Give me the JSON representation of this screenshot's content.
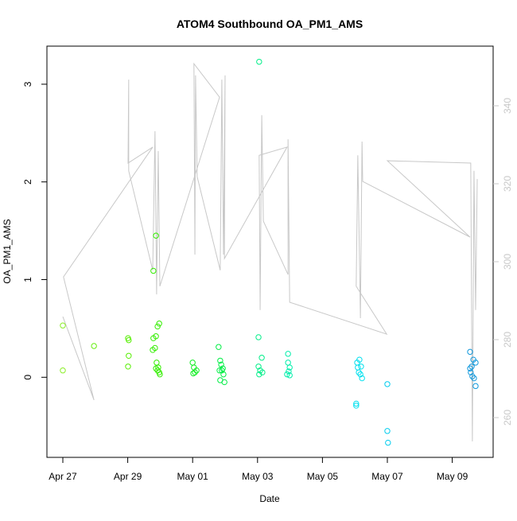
{
  "chart_data": {
    "type": "scatter",
    "title": "ATOM4 Southbound OA_PM1_AMS",
    "x_label": "Date",
    "y_label": "OA_PM1_AMS",
    "xlim": [
      -0.49,
      13.26
    ],
    "ylim": [
      -0.82,
      3.39
    ],
    "y2lim": [
      249.8,
      355.3
    ],
    "xticks": [
      {
        "value": 0,
        "label": "Apr 27"
      },
      {
        "value": 2,
        "label": "Apr 29"
      },
      {
        "value": 4,
        "label": "May 01"
      },
      {
        "value": 6,
        "label": "May 03"
      },
      {
        "value": 8,
        "label": "May 05"
      },
      {
        "value": 10,
        "label": "May 07"
      },
      {
        "value": 12,
        "label": "May 09"
      }
    ],
    "yticks": [
      0,
      1,
      2,
      3
    ],
    "y2ticks": [
      260,
      280,
      300,
      320,
      340
    ],
    "y2_color": "#c8c8c8",
    "groups": [
      {
        "color": "#88ee22",
        "x": [
          0,
          0
        ],
        "values": [
          0.53,
          0.07
        ]
      },
      {
        "color": "#66ee11",
        "x": [
          0.96
        ],
        "values": [
          0.32
        ]
      },
      {
        "color": "#55ee00",
        "x": [
          2.01,
          2.03,
          2.03,
          2.01
        ],
        "values": [
          0.4,
          0.38,
          0.22,
          0.11
        ]
      },
      {
        "color": "#33ee00",
        "x": [
          2.87,
          2.79,
          2.79,
          2.87,
          2.84,
          2.77,
          2.97,
          2.92,
          2.89,
          2.87,
          2.92,
          2.97,
          2.99,
          2.94
        ],
        "values": [
          1.45,
          1.09,
          0.4,
          0.42,
          0.3,
          0.28,
          0.55,
          0.52,
          0.15,
          0.09,
          0.07,
          0.05,
          0.03,
          0.1
        ]
      },
      {
        "color": "#11ee22",
        "x": [
          4.0,
          4.04,
          4.07,
          4.12,
          4.02
        ],
        "values": [
          0.15,
          0.1,
          0.05,
          0.07,
          0.04
        ]
      },
      {
        "color": "#00ee44",
        "x": [
          4.8,
          4.85,
          4.88,
          4.83,
          4.9,
          4.95,
          4.85,
          4.98,
          4.93
        ],
        "values": [
          0.31,
          0.17,
          0.13,
          0.07,
          0.07,
          0.03,
          -0.03,
          -0.05,
          0.09
        ]
      },
      {
        "color": "#00ee88",
        "x": [
          6.05,
          6.03,
          6.13,
          6.03,
          6.08,
          6.15,
          6.05
        ],
        "values": [
          3.23,
          0.41,
          0.2,
          0.11,
          0.07,
          0.05,
          0.03
        ]
      },
      {
        "color": "#00eeaa",
        "x": [
          6.94,
          6.94,
          6.99,
          6.96,
          6.91,
          6.99
        ],
        "values": [
          0.24,
          0.15,
          0.1,
          0.06,
          0.03,
          0.02
        ]
      },
      {
        "color": "#00e0ee",
        "x": [
          9.04,
          9.04,
          9.07,
          9.14,
          9.09,
          9.17,
          9.22,
          9.12,
          9.19
        ],
        "values": [
          -0.27,
          -0.29,
          0.15,
          0.18,
          0.1,
          0.03,
          -0.01,
          0.05,
          0.11
        ]
      },
      {
        "color": "#00ccee",
        "x": [
          10.0,
          10.0,
          10.02
        ],
        "values": [
          -0.07,
          -0.55,
          -0.67
        ]
      },
      {
        "color": "#1199dd",
        "x": [
          12.55,
          12.6,
          12.65,
          12.72,
          12.57,
          12.62,
          12.67,
          12.72,
          12.55
        ],
        "values": [
          0.26,
          0.11,
          0.18,
          0.15,
          0.05,
          0.01,
          -0.01,
          -0.09,
          0.09
        ]
      }
    ],
    "line": {
      "axis": "y2",
      "color": "#c8c8c8",
      "x": [
        0.0,
        0.96,
        0.02,
        2.77,
        2.01,
        2.03,
        2.03,
        2.77,
        2.84,
        2.89,
        2.94,
        2.99,
        4.83,
        4.04,
        4.07,
        4.09,
        4.14,
        4.85,
        4.9,
        4.95,
        5.0,
        4.98,
        6.91,
        6.05,
        6.08,
        6.13,
        6.18,
        6.94,
        6.94,
        6.99,
        9.98,
        9.04,
        9.09,
        9.17,
        9.22,
        9.24,
        12.55,
        10.0,
        12.57,
        12.62,
        12.67,
        12.72,
        12.77
      ],
      "values": [
        285.9,
        264.5,
        296.1,
        329.4,
        325.3,
        346.7,
        323.3,
        297.8,
        333.5,
        291.6,
        328.4,
        293.7,
        342.2,
        350.8,
        301.8,
        347.8,
        321.8,
        297.8,
        346.7,
        301.8,
        347.8,
        300.8,
        329.4,
        327.3,
        287.6,
        337.6,
        310.4,
        296.7,
        331.4,
        289.6,
        281.4,
        293.7,
        327.3,
        285.5,
        330.8,
        320.6,
        306.3,
        325.9,
        325.3,
        253.9,
        323.3,
        287.6,
        321.2
      ]
    }
  }
}
